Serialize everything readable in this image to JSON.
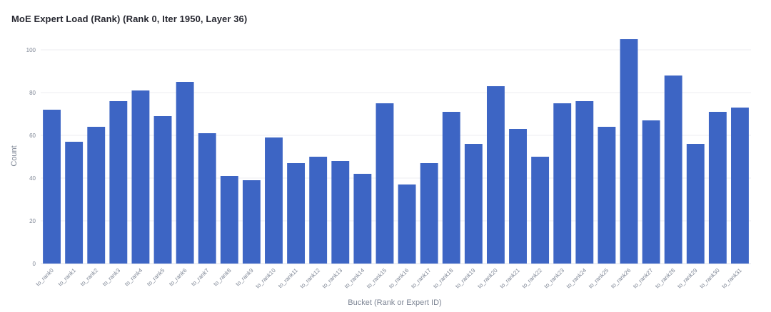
{
  "chart_data": {
    "type": "bar",
    "title": "MoE Expert Load (Rank) (Rank 0, Iter 1950, Layer 36)",
    "xlabel": "Bucket (Rank or Expert ID)",
    "ylabel": "Count",
    "ylim": [
      0,
      110
    ],
    "yticks": [
      0,
      20,
      40,
      60,
      80,
      100
    ],
    "grid": true,
    "categories": [
      "to_rank0",
      "to_rank1",
      "to_rank2",
      "to_rank3",
      "to_rank4",
      "to_rank5",
      "to_rank6",
      "to_rank7",
      "to_rank8",
      "to_rank9",
      "to_rank10",
      "to_rank11",
      "to_rank12",
      "to_rank13",
      "to_rank14",
      "to_rank15",
      "to_rank16",
      "to_rank17",
      "to_rank18",
      "to_rank19",
      "to_rank20",
      "to_rank21",
      "to_rank22",
      "to_rank23",
      "to_rank24",
      "to_rank25",
      "to_rank26",
      "to_rank27",
      "to_rank28",
      "to_rank29",
      "to_rank30",
      "to_rank31"
    ],
    "values": [
      72,
      57,
      64,
      76,
      81,
      69,
      85,
      61,
      41,
      39,
      59,
      47,
      50,
      48,
      42,
      75,
      37,
      47,
      71,
      56,
      83,
      63,
      50,
      75,
      76,
      64,
      105,
      67,
      88,
      56,
      71,
      73
    ],
    "bar_color": "#3d65c4"
  }
}
